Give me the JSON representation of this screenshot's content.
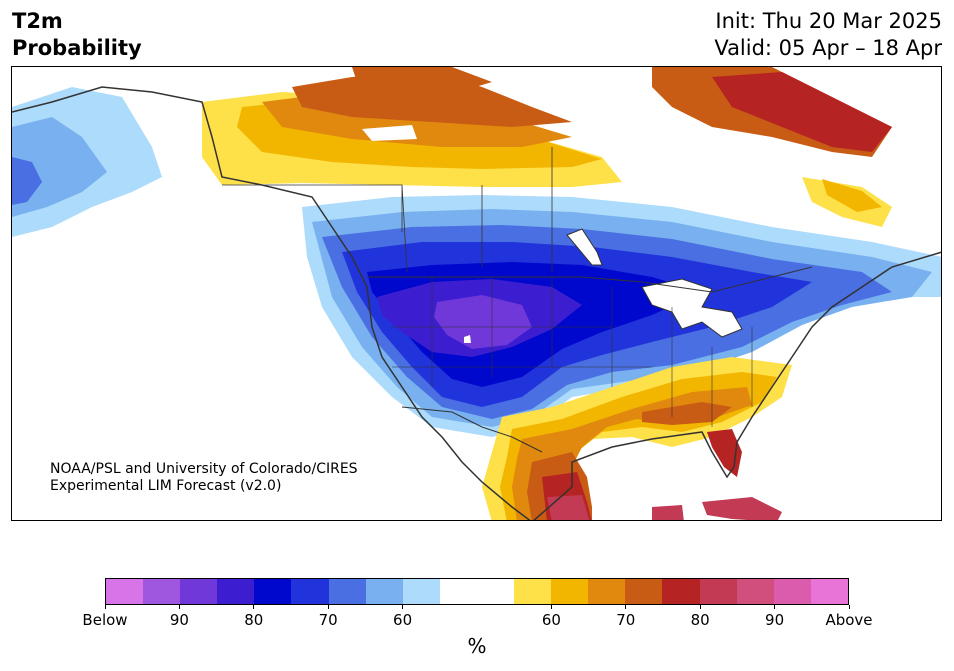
{
  "header": {
    "title_line1": "T2m",
    "title_line2": "Probability",
    "init_label": "Init: Thu 20 Mar 2025",
    "valid_label": "Valid: 05 Apr – 18 Apr"
  },
  "map": {
    "credit_line1": "NOAA/PSL and University of Colorado/CIRES",
    "credit_line2": "Experimental LIM Forecast (v2.0)"
  },
  "colorbar": {
    "colors": [
      "#d774e8",
      "#a057e0",
      "#7037d9",
      "#3c1ed0",
      "#0008cd",
      "#2133da",
      "#4a6fe3",
      "#79b0ef",
      "#acdbfb",
      "#ffffff",
      "#ffffff",
      "#fee048",
      "#f2b600",
      "#e0890e",
      "#c95c14",
      "#b52323",
      "#c23a54",
      "#d04f7d",
      "#db5cac",
      "#e874d8"
    ],
    "tick_labels": [
      "Below",
      "90",
      "80",
      "70",
      "60",
      "60",
      "70",
      "80",
      "90",
      "Above"
    ],
    "unit": "%"
  },
  "colors": {
    "ocean": "#ffffff",
    "border": "#333333",
    "warm_strong": "#b52323",
    "warm_mid": "#c95c14",
    "warm_light": "#e0890e",
    "warm_yellow": "#f2b600",
    "warm_pale": "#fee048",
    "cold_pale": "#acdbfb",
    "cold_light": "#79b0ef",
    "cold_mid": "#4a6fe3",
    "cold_strong": "#2133da",
    "cold_deep": "#0008cd",
    "cold_purple": "#3c1ed0",
    "cold_violet": "#7037d9",
    "pink": "#c23a54"
  }
}
